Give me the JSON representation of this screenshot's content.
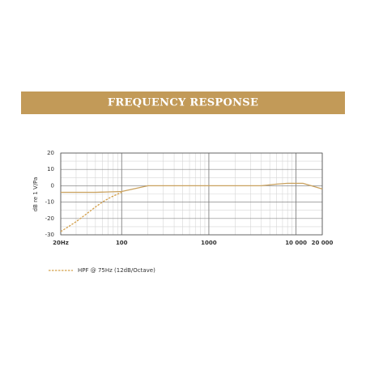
{
  "chart_data": {
    "type": "line",
    "title": "FREQUENCY RESPONSE",
    "y_label": "dB re 1 V/Pa",
    "log_x": true,
    "grid": true,
    "xlim": [
      20,
      20000
    ],
    "xticks": [
      {
        "value": 20,
        "label": "20Hz"
      },
      100,
      1000,
      {
        "value": 10000,
        "label": "10 000"
      },
      {
        "value": 20000,
        "label": "20 000"
      }
    ],
    "ylim": [
      -30,
      20
    ],
    "yticks": [
      20,
      10,
      0,
      -10,
      -20,
      -30
    ],
    "series": [
      {
        "color": "#c9a15e",
        "dash": false,
        "x": [
          20,
          50,
          100,
          150,
          200,
          500,
          1000,
          2000,
          4000,
          6000,
          8000,
          12000,
          15000,
          20000
        ],
        "values": [
          -4,
          -4,
          -3.5,
          -1.5,
          0,
          0,
          0,
          0,
          0,
          1,
          1.5,
          1.5,
          0,
          -2
        ]
      },
      {
        "name": "HPF @ 75Hz (12dB/Octave)",
        "color": "#d4a04a",
        "dash": true,
        "x": [
          20,
          30,
          40,
          50,
          60,
          75,
          100
        ],
        "values": [
          -28,
          -22,
          -17,
          -13,
          -10,
          -7,
          -4
        ]
      }
    ]
  }
}
